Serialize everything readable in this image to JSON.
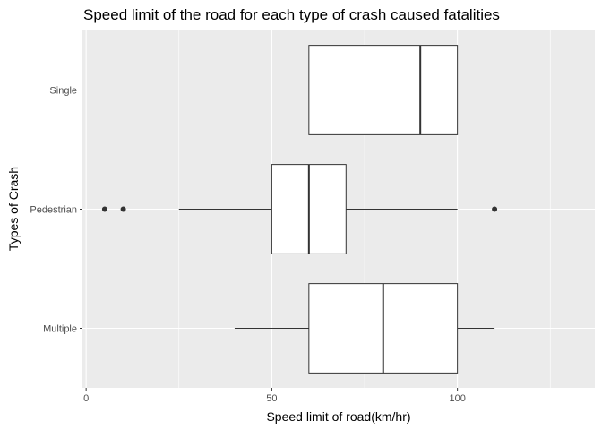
{
  "chart_data": {
    "type": "boxplot",
    "orientation": "horizontal",
    "title": "Speed limit of the road for each type of crash caused fatalities",
    "xlabel": "Speed limit of road(km/hr)",
    "ylabel": "Types of Crash",
    "xlim": [
      -1,
      137
    ],
    "xticks": [
      0,
      50,
      100
    ],
    "xminor": [
      25,
      75,
      125
    ],
    "categories": [
      "Multiple",
      "Pedestrian",
      "Single"
    ],
    "boxes": [
      {
        "category": "Multiple",
        "min": 40,
        "q1": 60,
        "median": 80,
        "q3": 100,
        "max": 110,
        "outliers": []
      },
      {
        "category": "Pedestrian",
        "min": 25,
        "q1": 50,
        "median": 60,
        "q3": 70,
        "max": 100,
        "outliers": [
          5,
          10,
          110
        ]
      },
      {
        "category": "Single",
        "min": 20,
        "q1": 60,
        "median": 90,
        "q3": 100,
        "max": 130,
        "outliers": []
      }
    ],
    "grid": true,
    "panel_background": "#ebebeb",
    "gridline_color": "#ffffff",
    "box_fill": "#ffffff",
    "box_stroke": "#333333",
    "outlier_color": "#333333"
  }
}
